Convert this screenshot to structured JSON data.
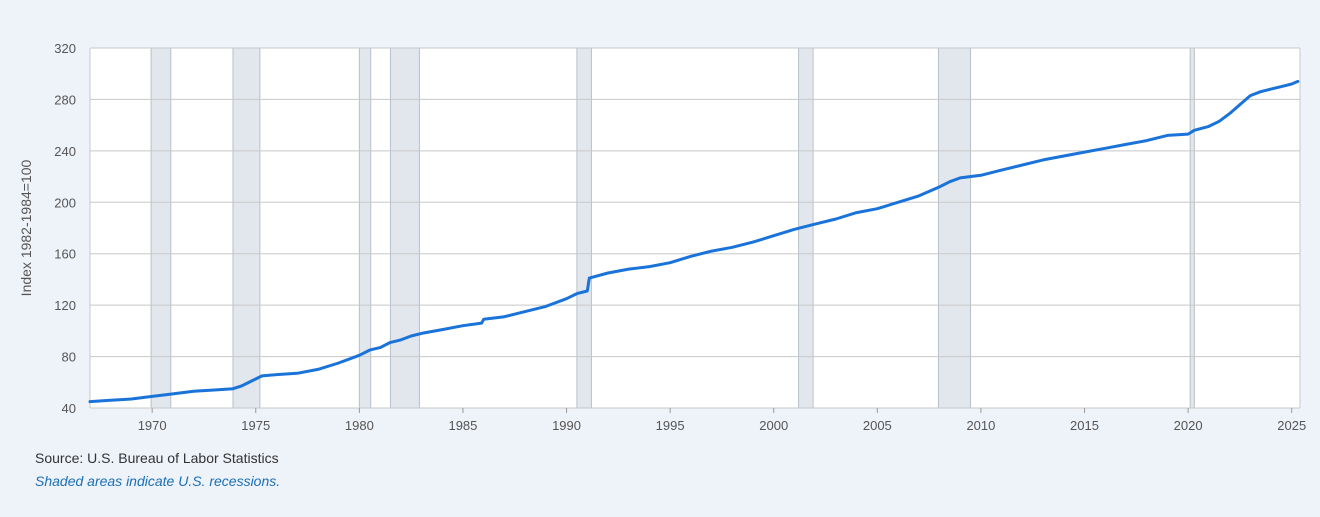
{
  "chart_data": {
    "type": "line",
    "title": "",
    "ylabel": "Index 1982-1984=100",
    "xlabel": "",
    "xlim": [
      1967.0,
      2025.4
    ],
    "ylim": [
      40,
      320
    ],
    "yticks": [
      40,
      80,
      120,
      160,
      200,
      240,
      280,
      320
    ],
    "xticks": [
      1970,
      1975,
      1980,
      1985,
      1990,
      1995,
      2000,
      2005,
      2010,
      2015,
      2020,
      2025
    ],
    "grid": true,
    "line_color": "#1a73d9",
    "recession_color": "#e2e7ee",
    "recessions": [
      [
        1969.95,
        1970.9
      ],
      [
        1973.9,
        1975.2
      ],
      [
        1980.0,
        1980.55
      ],
      [
        1981.5,
        1982.9
      ],
      [
        1990.5,
        1991.2
      ],
      [
        2001.2,
        2001.9
      ],
      [
        2007.95,
        2009.5
      ],
      [
        2020.1,
        2020.3
      ]
    ],
    "series": [
      {
        "x": [
          1967.0,
          1968.0,
          1969.0,
          1970.0,
          1971.0,
          1972.0,
          1973.0,
          1973.9,
          1974.3,
          1974.8,
          1975.3,
          1976.0,
          1977.0,
          1978.0,
          1979.0,
          1980.0,
          1980.5,
          1981.0,
          1981.5,
          1982.0,
          1982.5,
          1983.0,
          1984.0,
          1985.0,
          1985.9,
          1986.0,
          1987.0,
          1988.0,
          1989.0,
          1990.0,
          1990.5,
          1991.0,
          1991.1,
          1992.0,
          1993.0,
          1994.0,
          1995.0,
          1996.0,
          1997.0,
          1998.0,
          1999.0,
          2000.0,
          2001.0,
          2002.0,
          2003.0,
          2004.0,
          2005.0,
          2006.0,
          2007.0,
          2008.0,
          2008.5,
          2009.0,
          2010.0,
          2011.0,
          2012.0,
          2013.0,
          2014.0,
          2015.0,
          2016.0,
          2017.0,
          2018.0,
          2019.0,
          2020.0,
          2020.3,
          2021.0,
          2021.5,
          2022.0,
          2022.5,
          2023.0,
          2023.5,
          2024.0,
          2024.5,
          2025.0,
          2025.3
        ],
        "values": [
          45,
          46,
          47,
          49,
          51,
          53,
          54,
          55,
          57,
          61,
          65,
          66,
          67,
          70,
          75,
          81,
          85,
          87,
          91,
          93,
          96,
          98,
          101,
          104,
          106,
          109,
          111,
          115,
          119,
          125,
          129,
          131,
          141,
          145,
          148,
          150,
          153,
          158,
          162,
          165,
          169,
          174,
          179,
          183,
          187,
          192,
          195,
          200,
          205,
          212,
          216,
          219,
          221,
          225,
          229,
          233,
          236,
          239,
          242,
          245,
          248,
          252,
          253,
          256,
          259,
          263,
          269,
          276,
          283,
          286,
          288,
          290,
          292,
          294
        ]
      }
    ]
  },
  "footer": {
    "source": "Source: U.S. Bureau of Labor Statistics",
    "note": "Shaded areas indicate U.S. recessions."
  }
}
